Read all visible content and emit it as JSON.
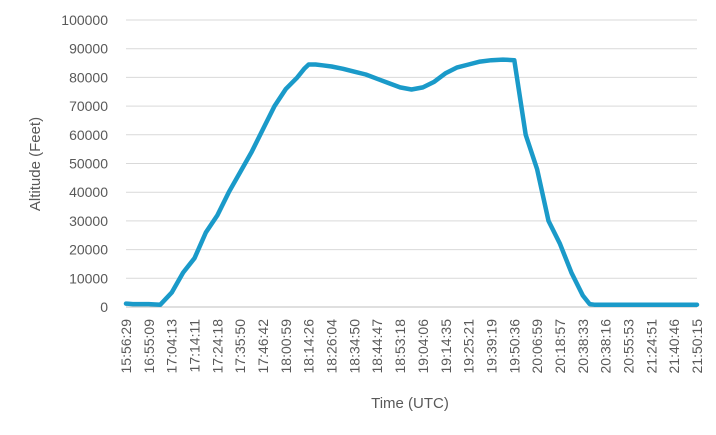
{
  "chart_data": {
    "type": "line",
    "title": "",
    "xlabel": "Time (UTC)",
    "ylabel": "Altitude (Feet)",
    "ylim": [
      0,
      100000
    ],
    "y_ticks": [
      0,
      10000,
      20000,
      30000,
      40000,
      50000,
      60000,
      70000,
      80000,
      90000,
      100000
    ],
    "x_tick_labels": [
      "15:56:29",
      "16:55:09",
      "17:04:13",
      "17:14:11",
      "17:24:18",
      "17:35:50",
      "17:46:42",
      "18:00:59",
      "18:14:26",
      "18:26:04",
      "18:34:50",
      "18:44:47",
      "18:53:18",
      "19:04:06",
      "19:14:35",
      "19:25:21",
      "19:39:19",
      "19:50:36",
      "20:06:59",
      "20:18:57",
      "20:38:33",
      "20:38:16",
      "20:55:53",
      "21:24:51",
      "21:40:46",
      "21:50:15"
    ],
    "grid": true,
    "legend": "none",
    "color": "#1a9ac9",
    "series": [
      {
        "x": [
          0,
          0.3,
          1,
          1.5,
          2,
          2.5,
          3,
          3.5,
          4,
          4.5,
          5,
          5.5,
          6,
          6.5,
          7,
          7.5,
          7.8,
          8,
          8.3,
          8.6,
          9,
          9.5,
          10,
          10.5,
          11,
          11.5,
          12,
          12.5,
          13,
          13.5,
          14,
          14.5,
          15,
          15.5,
          16,
          16.5,
          17,
          17.5,
          18,
          18.5,
          19,
          19.5,
          20,
          20.3,
          20.5,
          20.7,
          21,
          21.3,
          21.5,
          22,
          22.5,
          23,
          23.5,
          24,
          24.5,
          25
        ],
        "values": [
          1200,
          1000,
          1000,
          800,
          5000,
          12000,
          17000,
          26000,
          32000,
          40000,
          47000,
          54000,
          62000,
          70000,
          76000,
          80000,
          83000,
          84500,
          84500,
          84200,
          83800,
          83000,
          82000,
          81000,
          79500,
          78000,
          76500,
          75800,
          76500,
          78500,
          81500,
          83500,
          84500,
          85500,
          86000,
          86200,
          86000,
          60000,
          48000,
          30000,
          22000,
          12000,
          4000,
          1000,
          800,
          800,
          800,
          800,
          800,
          800,
          800,
          800,
          800,
          800,
          800,
          800
        ]
      }
    ]
  }
}
